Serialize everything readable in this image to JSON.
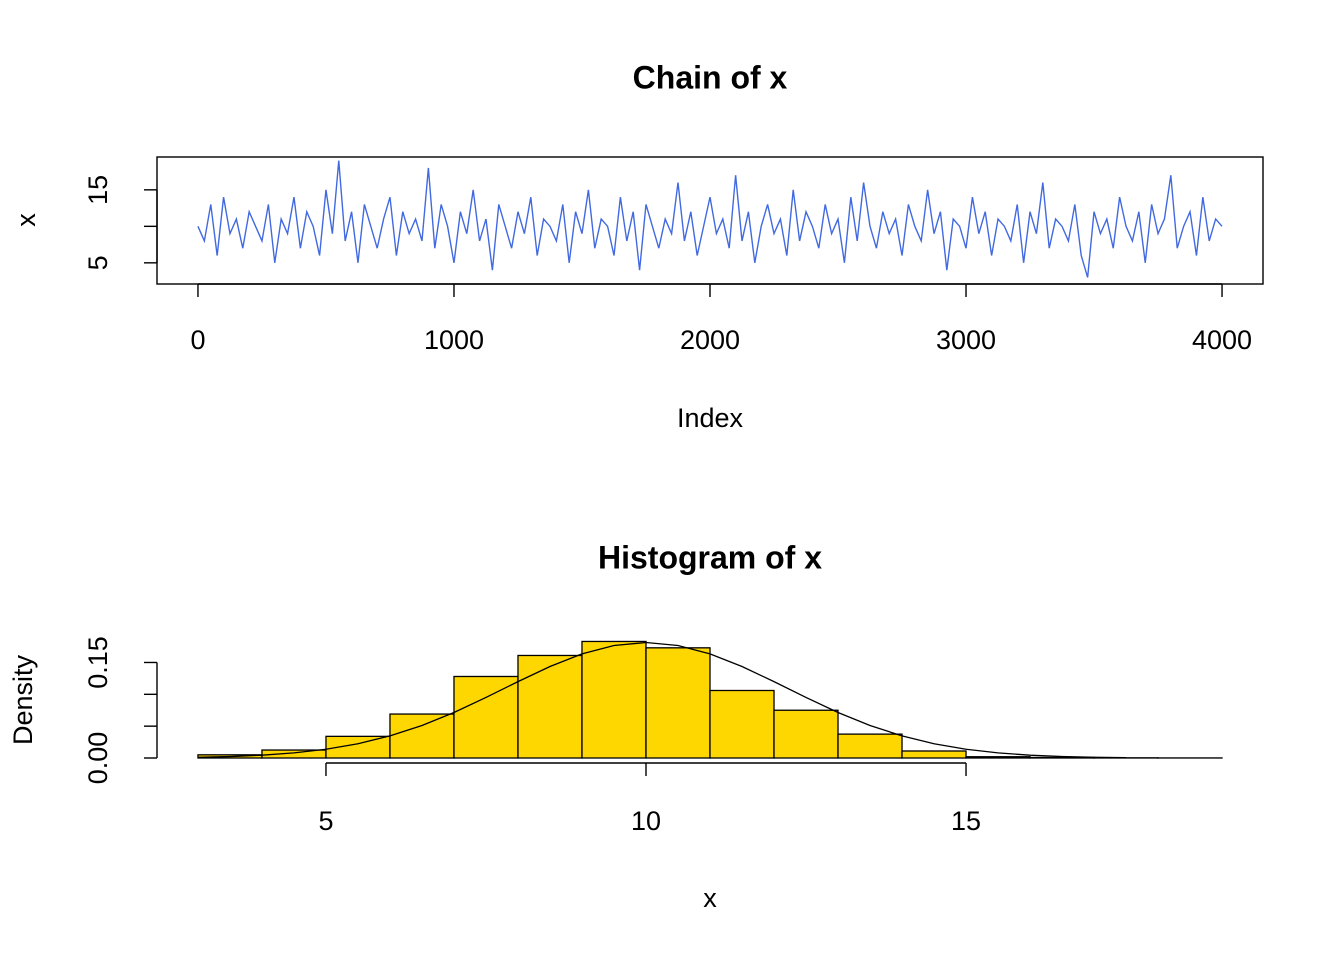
{
  "chart_data": [
    {
      "type": "line",
      "title": "Chain of x",
      "xlabel": "Index",
      "ylabel": "x",
      "color": "#4169e1",
      "x": [
        0,
        25,
        50,
        75,
        100,
        125,
        150,
        175,
        200,
        225,
        250,
        275,
        300,
        325,
        350,
        375,
        400,
        425,
        450,
        475,
        500,
        525,
        550,
        575,
        600,
        625,
        650,
        675,
        700,
        725,
        750,
        775,
        800,
        825,
        850,
        875,
        900,
        925,
        950,
        975,
        1000,
        1025,
        1050,
        1075,
        1100,
        1125,
        1150,
        1175,
        1200,
        1225,
        1250,
        1275,
        1300,
        1325,
        1350,
        1375,
        1400,
        1425,
        1450,
        1475,
        1500,
        1525,
        1550,
        1575,
        1600,
        1625,
        1650,
        1675,
        1700,
        1725,
        1750,
        1775,
        1800,
        1825,
        1850,
        1875,
        1900,
        1925,
        1950,
        1975,
        2000,
        2025,
        2050,
        2075,
        2100,
        2125,
        2150,
        2175,
        2200,
        2225,
        2250,
        2275,
        2300,
        2325,
        2350,
        2375,
        2400,
        2425,
        2450,
        2475,
        2500,
        2525,
        2550,
        2575,
        2600,
        2625,
        2650,
        2675,
        2700,
        2725,
        2750,
        2775,
        2800,
        2825,
        2850,
        2875,
        2900,
        2925,
        2950,
        2975,
        3000,
        3025,
        3050,
        3075,
        3100,
        3125,
        3150,
        3175,
        3200,
        3225,
        3250,
        3275,
        3300,
        3325,
        3350,
        3375,
        3400,
        3425,
        3450,
        3475,
        3500,
        3525,
        3550,
        3575,
        3600,
        3625,
        3650,
        3675,
        3700,
        3725,
        3750,
        3775,
        3800,
        3825,
        3850,
        3875,
        3900,
        3925,
        3950,
        3975,
        4000
      ],
      "values": [
        10,
        8,
        13,
        6,
        14,
        9,
        11,
        7,
        12,
        10,
        8,
        13,
        5,
        11,
        9,
        14,
        7,
        12,
        10,
        6,
        15,
        9,
        19,
        8,
        12,
        5,
        13,
        10,
        7,
        11,
        14,
        6,
        12,
        9,
        11,
        8,
        18,
        7,
        13,
        10,
        5,
        12,
        9,
        15,
        8,
        11,
        4,
        13,
        10,
        7,
        12,
        9,
        14,
        6,
        11,
        10,
        8,
        13,
        5,
        12,
        9,
        15,
        7,
        11,
        10,
        6,
        14,
        8,
        12,
        4,
        13,
        10,
        7,
        11,
        9,
        16,
        8,
        12,
        6,
        10,
        14,
        9,
        11,
        7,
        17,
        8,
        12,
        5,
        10,
        13,
        9,
        11,
        6,
        15,
        8,
        12,
        10,
        7,
        13,
        9,
        11,
        5,
        14,
        8,
        16,
        10,
        7,
        12,
        9,
        11,
        6,
        13,
        10,
        8,
        15,
        9,
        12,
        4,
        11,
        10,
        7,
        14,
        9,
        12,
        6,
        11,
        10,
        8,
        13,
        5,
        12,
        9,
        16,
        7,
        11,
        10,
        8,
        13,
        6,
        3,
        12,
        9,
        11,
        7,
        14,
        10,
        8,
        12,
        5,
        13,
        9,
        11,
        17,
        7,
        10,
        12,
        6,
        14,
        8,
        11,
        10
      ],
      "xlim": [
        -160,
        4160
      ],
      "ylim": [
        2.1,
        19.5
      ],
      "xticks": [
        0,
        1000,
        2000,
        3000,
        4000
      ],
      "yticks": [
        5,
        {
          "value": 10,
          "label": null
        },
        15
      ]
    },
    {
      "type": "histogram",
      "title": "Histogram of x",
      "xlabel": "x",
      "ylabel": "Density",
      "color": "#ffd700",
      "bins": [
        3,
        4,
        5,
        6,
        7,
        8,
        9,
        10,
        11,
        12,
        13,
        14,
        15,
        16,
        17,
        18,
        19
      ],
      "values": [
        0.005,
        0.0125,
        0.034,
        0.069,
        0.128,
        0.161,
        0.183,
        0.173,
        0.106,
        0.075,
        0.0375,
        0.011,
        0.002,
        0.0008,
        0.0003,
        0.0001
      ],
      "curve": {
        "color": "#000000",
        "x": [
          3,
          3.5,
          4,
          4.5,
          5,
          5.5,
          6,
          6.5,
          7,
          7.5,
          8,
          8.5,
          9,
          9.5,
          10,
          10.5,
          11,
          11.5,
          12,
          12.5,
          13,
          13.5,
          14,
          14.5,
          15,
          15.5,
          16,
          16.5,
          17,
          17.5
        ],
        "values": [
          0.0011,
          0.0023,
          0.0044,
          0.008,
          0.0137,
          0.0224,
          0.0347,
          0.0511,
          0.0715,
          0.0951,
          0.1199,
          0.1437,
          0.1635,
          0.1767,
          0.1813,
          0.1767,
          0.1635,
          0.1437,
          0.1199,
          0.0951,
          0.0715,
          0.0511,
          0.0347,
          0.0224,
          0.0137,
          0.008,
          0.0044,
          0.0023,
          0.0011,
          0.0005
        ]
      },
      "xlim": [
        2.36,
        19.64
      ],
      "ylim": [
        0,
        0.19
      ],
      "xticks": [
        5,
        10,
        15
      ],
      "yticks": [
        {
          "value": 0,
          "label": "0.00"
        },
        {
          "value": 0.05,
          "label": null
        },
        {
          "value": 0.1,
          "label": null
        },
        {
          "value": 0.15,
          "label": "0.15"
        }
      ]
    }
  ]
}
